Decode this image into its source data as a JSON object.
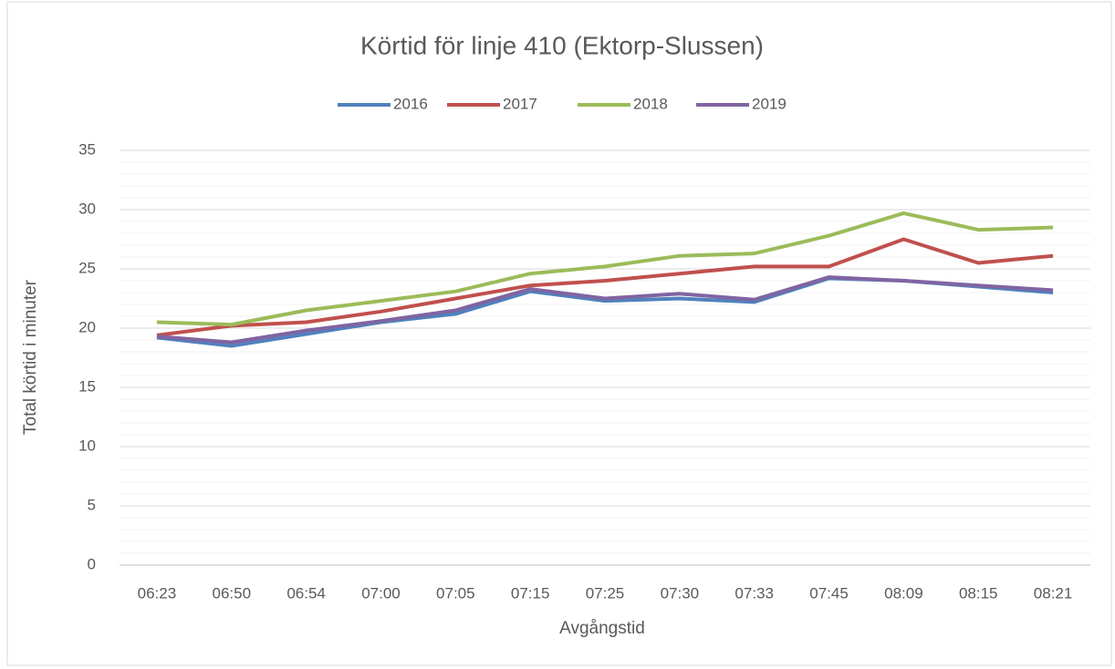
{
  "chart_data": {
    "type": "line",
    "title": "Körtid för linje 410 (Ektorp-Slussen)",
    "x_label": "Avgångstid",
    "y_label": "Total körtid i minuter",
    "categories": [
      "06:23",
      "06:50",
      "06:54",
      "07:00",
      "07:05",
      "07:15",
      "07:25",
      "07:30",
      "07:33",
      "07:45",
      "08:09",
      "08:15",
      "08:21"
    ],
    "series": [
      {
        "name": "2016",
        "color": "#4f81bd",
        "values": [
          19.2,
          18.5,
          19.5,
          20.5,
          21.2,
          23.1,
          22.3,
          22.5,
          22.2,
          24.2,
          24.0,
          23.5,
          23.0
        ]
      },
      {
        "name": "2017",
        "color": "#c0504d",
        "values": [
          19.4,
          20.2,
          20.5,
          21.4,
          22.5,
          23.6,
          24.0,
          24.6,
          25.2,
          25.2,
          27.5,
          25.5,
          26.1
        ]
      },
      {
        "name": "2018",
        "color": "#9bbb59",
        "values": [
          20.5,
          20.3,
          21.5,
          22.3,
          23.1,
          24.6,
          25.2,
          26.1,
          26.3,
          27.8,
          29.7,
          28.3,
          28.5
        ]
      },
      {
        "name": "2019",
        "color": "#8064a2",
        "values": [
          19.3,
          18.8,
          19.8,
          20.6,
          21.5,
          23.3,
          22.5,
          22.9,
          22.4,
          24.3,
          24.0,
          23.6,
          23.2
        ]
      }
    ],
    "ylim": [
      0,
      35
    ],
    "yticks": [
      0,
      5,
      10,
      15,
      20,
      25,
      30,
      35
    ],
    "grid": true,
    "legend": "top"
  }
}
